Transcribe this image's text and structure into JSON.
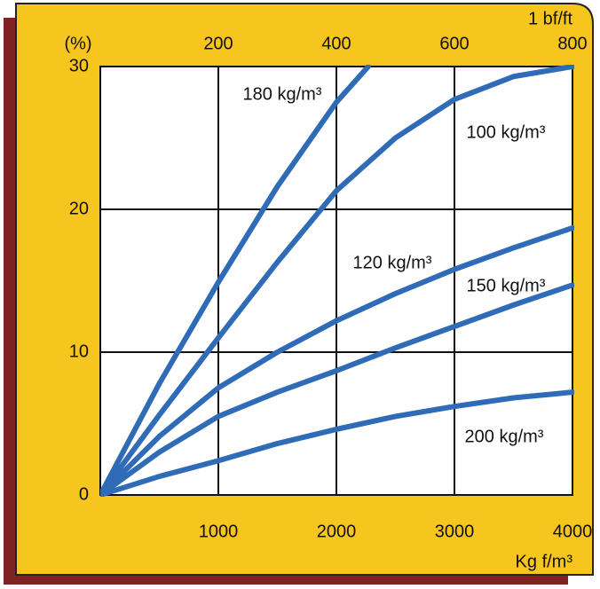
{
  "chart_data": {
    "type": "line",
    "xlabel": "Kg f/m³",
    "ylabel": "(%)",
    "x2label": "1 bf/ft",
    "xlim": [
      0,
      4000
    ],
    "xticks": [
      1000,
      2000,
      3000,
      4000
    ],
    "x2lim": [
      0,
      800
    ],
    "x2ticks": [
      200,
      400,
      600,
      800
    ],
    "ylim": [
      0,
      30
    ],
    "yticks": [
      0,
      10,
      20,
      30
    ],
    "grid": true,
    "series": [
      {
        "name": "180 kg/m³",
        "color": "#2f6bb7",
        "x": [
          0,
          500,
          1000,
          1500,
          2000,
          2270
        ],
        "values": [
          0,
          7.8,
          14.9,
          21.6,
          27.5,
          30
        ]
      },
      {
        "name": "100 kg/m³",
        "color": "#2f6bb7",
        "x": [
          0,
          500,
          1000,
          1500,
          2000,
          2500,
          3000,
          3500,
          4000
        ],
        "values": [
          0,
          5.6,
          11,
          16.3,
          21.3,
          25,
          27.7,
          29.3,
          30
        ]
      },
      {
        "name": "120 kg/m³",
        "color": "#2f6bb7",
        "x": [
          0,
          500,
          1000,
          1500,
          2000,
          2500,
          3000,
          3500,
          4000
        ],
        "values": [
          0,
          4.1,
          7.5,
          10,
          12.2,
          14.1,
          15.8,
          17.3,
          18.7
        ]
      },
      {
        "name": "150 kg/m³",
        "color": "#2f6bb7",
        "x": [
          0,
          500,
          1000,
          1500,
          2000,
          2500,
          3000,
          3500,
          4000
        ],
        "values": [
          0,
          3,
          5.5,
          7.2,
          8.7,
          10.3,
          11.8,
          13.3,
          14.7
        ]
      },
      {
        "name": "200 kg/m³",
        "color": "#2f6bb7",
        "x": [
          0,
          500,
          1000,
          1500,
          2000,
          2500,
          3000,
          3500,
          4000
        ],
        "values": [
          0,
          1.3,
          2.4,
          3.6,
          4.6,
          5.5,
          6.2,
          6.8,
          7.2
        ]
      }
    ]
  }
}
